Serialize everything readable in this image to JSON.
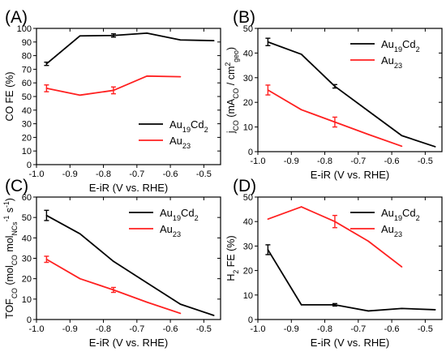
{
  "figure": {
    "colors": {
      "Au19Cd2": "#000000",
      "Au23": "#ff2020",
      "axis": "#000000"
    }
  },
  "chart_data": [
    {
      "panel_label": "(A)",
      "type": "line",
      "xlabel": "E-iR (V vs. RHE)",
      "ylabel": "CO FE (%)",
      "xlim": [
        -1.0,
        -0.45
      ],
      "ylim": [
        0,
        100
      ],
      "xticks": [
        -1.0,
        -0.9,
        -0.8,
        -0.7,
        -0.6,
        -0.5
      ],
      "yticks": [
        0,
        10,
        20,
        30,
        40,
        50,
        60,
        70,
        80,
        90,
        100
      ],
      "legend": {
        "position": "bottom-right"
      },
      "series": [
        {
          "name": "Au19Cd2",
          "color": "#000000",
          "x": [
            -0.97,
            -0.87,
            -0.77,
            -0.67,
            -0.57,
            -0.47
          ],
          "y": [
            74,
            94.5,
            94.8,
            96.5,
            91.5,
            91.0
          ],
          "err": [
            1.2,
            0,
            1.2,
            0,
            0,
            0
          ]
        },
        {
          "name": "Au23",
          "color": "#ff2020",
          "x": [
            -0.97,
            -0.87,
            -0.77,
            -0.67,
            -0.57
          ],
          "y": [
            56,
            51,
            54.5,
            65,
            64.5
          ],
          "err": [
            2.5,
            0,
            2.5,
            0,
            0
          ]
        }
      ]
    },
    {
      "panel_label": "(B)",
      "type": "line",
      "xlabel": "E-iR (V vs. RHE)",
      "ylabel": "jCO (mACO / cm2geo)",
      "xlim": [
        -1.0,
        -0.45
      ],
      "ylim": [
        0,
        50
      ],
      "xticks": [
        -1.0,
        -0.9,
        -0.8,
        -0.7,
        -0.6,
        -0.5
      ],
      "yticks": [
        0,
        10,
        20,
        30,
        40,
        50
      ],
      "legend": {
        "position": "top-right"
      },
      "series": [
        {
          "name": "Au19Cd2",
          "color": "#000000",
          "x": [
            -0.97,
            -0.87,
            -0.77,
            -0.67,
            -0.57,
            -0.47
          ],
          "y": [
            44.5,
            39.5,
            26.5,
            16.5,
            6.5,
            2.0
          ],
          "err": [
            1.5,
            0,
            0.7,
            0,
            0,
            0
          ]
        },
        {
          "name": "Au23",
          "color": "#ff2020",
          "x": [
            -0.97,
            -0.87,
            -0.77,
            -0.67,
            -0.57
          ],
          "y": [
            25,
            17,
            12,
            7,
            2.2
          ],
          "err": [
            2.0,
            0,
            2.0,
            0,
            0
          ]
        }
      ]
    },
    {
      "panel_label": "(C)",
      "type": "line",
      "xlabel": "E-iR (V vs. RHE)",
      "ylabel": "TOFCO (molCO molNCs-1 s-1)",
      "xlim": [
        -1.0,
        -0.45
      ],
      "ylim": [
        0,
        60
      ],
      "xticks": [
        -1.0,
        -0.9,
        -0.8,
        -0.7,
        -0.6,
        -0.5
      ],
      "yticks": [
        0,
        10,
        20,
        30,
        40,
        50,
        60
      ],
      "legend": {
        "position": "top-right"
      },
      "series": [
        {
          "name": "Au19Cd2",
          "color": "#000000",
          "x": [
            -0.97,
            -0.87,
            -0.77,
            -0.67,
            -0.57,
            -0.47
          ],
          "y": [
            51,
            42,
            28.5,
            18,
            7.5,
            2.0
          ],
          "err": [
            2.5,
            0,
            0,
            0,
            0,
            0
          ]
        },
        {
          "name": "Au23",
          "color": "#ff2020",
          "x": [
            -0.97,
            -0.87,
            -0.77,
            -0.67,
            -0.57
          ],
          "y": [
            29.5,
            20,
            14.5,
            8.5,
            3.0
          ],
          "err": [
            1.5,
            0,
            1.2,
            0,
            0
          ]
        }
      ]
    },
    {
      "panel_label": "(D)",
      "type": "line",
      "xlabel": "E-iR (V vs. RHE)",
      "ylabel": "H2 FE (%)",
      "xlim": [
        -1.0,
        -0.45
      ],
      "ylim": [
        0,
        50
      ],
      "xticks": [
        -1.0,
        -0.9,
        -0.8,
        -0.7,
        -0.6,
        -0.5
      ],
      "yticks": [
        0,
        10,
        20,
        30,
        40,
        50
      ],
      "legend": {
        "position": "top-right"
      },
      "series": [
        {
          "name": "Au19Cd2",
          "color": "#000000",
          "x": [
            -0.97,
            -0.87,
            -0.77,
            -0.67,
            -0.57,
            -0.47
          ],
          "y": [
            28.5,
            6.0,
            6.0,
            3.5,
            4.5,
            4.0
          ],
          "err": [
            2.0,
            0,
            0.5,
            0,
            0,
            0
          ]
        },
        {
          "name": "Au23",
          "color": "#ff2020",
          "x": [
            -0.97,
            -0.87,
            -0.77,
            -0.67,
            -0.57
          ],
          "y": [
            41,
            46,
            40,
            32,
            21.5
          ],
          "err": [
            0,
            0,
            2.5,
            0,
            0
          ]
        }
      ]
    }
  ]
}
